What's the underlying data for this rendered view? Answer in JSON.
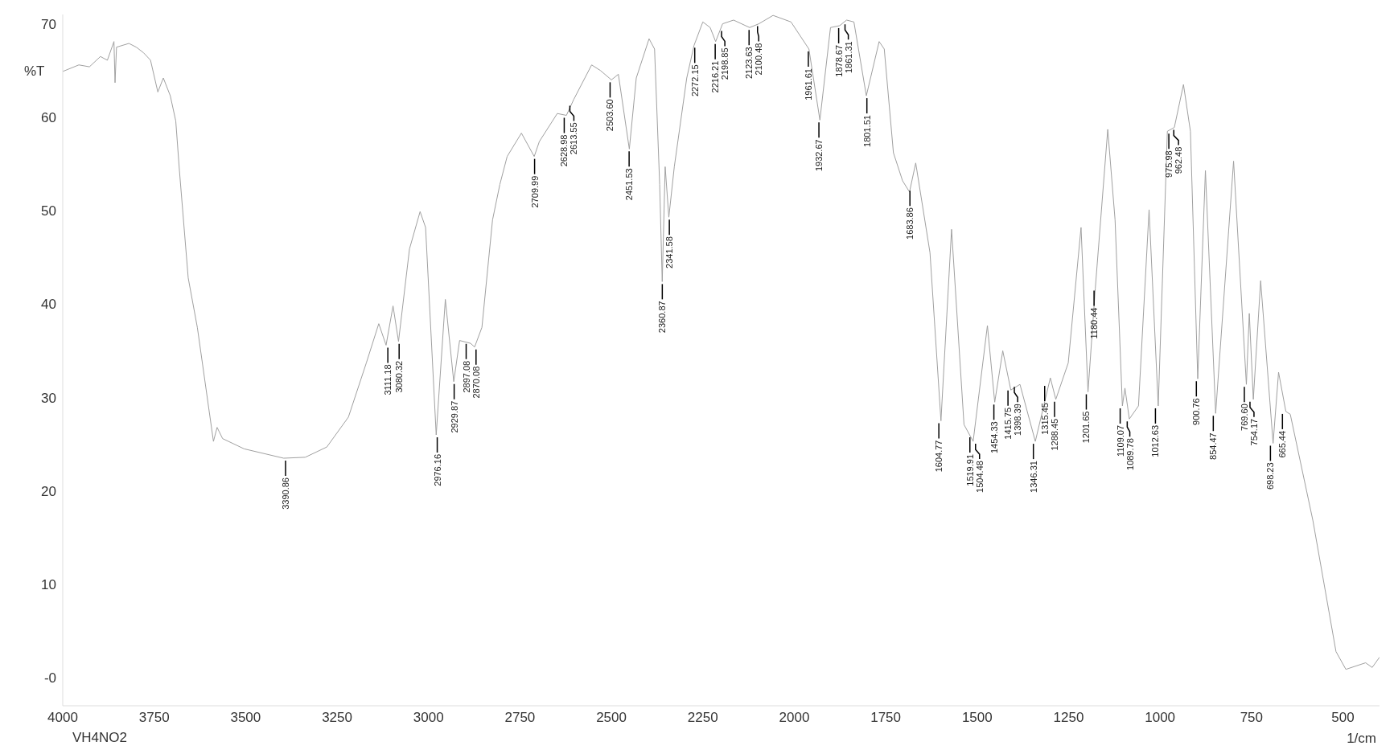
{
  "chart_data": {
    "type": "line",
    "ylabel": "%T",
    "xlabel": "1/cm",
    "xlim": [
      4000,
      400
    ],
    "xticks": [
      4000,
      3750,
      3500,
      3250,
      3000,
      2750,
      2500,
      2250,
      2000,
      1750,
      1500,
      1250,
      1000,
      750,
      500
    ],
    "ylim": [
      -3,
      71
    ],
    "yticks": [
      {
        "value": 0,
        "label": "-0"
      },
      10,
      20,
      30,
      40,
      50,
      60,
      70
    ],
    "series": [
      {
        "color": "#a0a0a0",
        "x": [
          4000,
          3956,
          3927,
          3897,
          3878,
          3860,
          3857,
          3853,
          3819,
          3799,
          3779,
          3760,
          3740,
          3725,
          3706,
          3691,
          3681,
          3657,
          3632,
          3588,
          3578,
          3563,
          3504,
          3396,
          3337,
          3278,
          3219,
          3170,
          3136,
          3116,
          3097,
          3082,
          3052,
          3023,
          3008,
          2979,
          2954,
          2931,
          2915,
          2885,
          2874,
          2854,
          2825,
          2805,
          2785,
          2746,
          2711,
          2697,
          2648,
          2623,
          2603,
          2554,
          2530,
          2500,
          2481,
          2451,
          2432,
          2397,
          2382,
          2368,
          2361,
          2353,
          2343,
          2328,
          2294,
          2274,
          2250,
          2230,
          2215,
          2196,
          2166,
          2122,
          2097,
          2058,
          2009,
          1960,
          1930,
          1901,
          1876,
          1857,
          1837,
          1803,
          1768,
          1754,
          1729,
          1704,
          1685,
          1668,
          1629,
          1599,
          1570,
          1536,
          1511,
          1472,
          1452,
          1430,
          1408,
          1383,
          1341,
          1300,
          1285,
          1251,
          1216,
          1197,
          1177,
          1143,
          1123,
          1103,
          1096,
          1084,
          1059,
          1030,
          1005,
          980,
          961,
          936,
          917,
          897,
          876,
          848,
          799,
          764,
          756,
          745,
          725,
          691,
          676,
          656,
          644,
          582,
          519,
          492,
          438,
          420,
          400
        ],
        "values": [
          64.9,
          65.6,
          65.4,
          66.5,
          66.1,
          68.1,
          63.7,
          67.5,
          67.9,
          67.5,
          66.9,
          66.1,
          62.7,
          64.2,
          62.3,
          59.6,
          54.3,
          42.8,
          37.5,
          25.3,
          26.8,
          25.6,
          24.5,
          23.5,
          23.6,
          24.7,
          27.9,
          33.7,
          37.9,
          35.6,
          39.8,
          36.0,
          45.9,
          49.9,
          48.2,
          26.0,
          40.5,
          31.7,
          36.1,
          35.8,
          35.4,
          37.5,
          49.0,
          52.8,
          55.8,
          58.3,
          55.8,
          57.4,
          60.4,
          60.2,
          61.9,
          65.6,
          65.0,
          64.0,
          64.6,
          56.6,
          64.2,
          68.4,
          67.3,
          52.8,
          42.4,
          54.7,
          49.3,
          54.7,
          64.2,
          67.7,
          70.2,
          69.6,
          68.1,
          70.0,
          70.4,
          69.6,
          70.0,
          70.9,
          70.2,
          67.3,
          59.7,
          69.6,
          69.8,
          70.4,
          70.2,
          62.3,
          68.1,
          67.3,
          56.2,
          53.2,
          52.0,
          55.1,
          45.5,
          27.5,
          48.0,
          27.1,
          25.3,
          37.7,
          29.5,
          35.0,
          30.8,
          31.4,
          25.3,
          32.1,
          29.8,
          33.7,
          48.2,
          30.6,
          41.7,
          58.7,
          49.0,
          29.1,
          31.0,
          27.7,
          29.1,
          50.1,
          29.1,
          58.5,
          58.9,
          63.5,
          58.5,
          32.0,
          54.3,
          28.3,
          55.3,
          31.4,
          39.0,
          29.8,
          42.5,
          25.1,
          32.7,
          28.5,
          28.2,
          16.8,
          2.8,
          0.9,
          1.6,
          1.1,
          2.2
        ]
      }
    ],
    "annotations": [
      "VH4NO2",
      {
        "text": "3390.86",
        "x": 3390.86,
        "y": 23.5
      },
      {
        "text": "3111.18",
        "x": 3111.18,
        "y": 35.6
      },
      {
        "text": "3080.32",
        "x": 3080.32,
        "y": 36.0
      },
      {
        "text": "2976.16",
        "x": 2976.16,
        "y": 26.0
      },
      {
        "text": "2929.87",
        "x": 2929.87,
        "y": 31.7
      },
      {
        "text": "2897.08",
        "x": 2897.08,
        "y": 36.0
      },
      {
        "text": "2870.08",
        "x": 2870.08,
        "y": 35.4
      },
      {
        "text": "2709.99",
        "x": 2709.99,
        "y": 55.8
      },
      {
        "text": "2628.98",
        "x": 2628.98,
        "y": 60.2
      },
      {
        "text": "2613.55",
        "x": 2613.55,
        "y": 61.5
      },
      {
        "text": "2503.60",
        "x": 2503.6,
        "y": 64.0
      },
      {
        "text": "2451.53",
        "x": 2451.53,
        "y": 56.6
      },
      {
        "text": "2360.87",
        "x": 2360.87,
        "y": 42.4
      },
      {
        "text": "2341.58",
        "x": 2341.58,
        "y": 49.3
      },
      {
        "text": "2272.15",
        "x": 2272.15,
        "y": 67.7
      },
      {
        "text": "2216.21",
        "x": 2216.21,
        "y": 68.1
      },
      {
        "text": "2198.85",
        "x": 2198.85,
        "y": 69.5
      },
      {
        "text": "2123.63",
        "x": 2123.63,
        "y": 69.6
      },
      {
        "text": "2100.48",
        "x": 2100.48,
        "y": 70.0
      },
      {
        "text": "1961.61",
        "x": 1961.61,
        "y": 67.3
      },
      {
        "text": "1932.67",
        "x": 1932.67,
        "y": 59.7
      },
      {
        "text": "1878.67",
        "x": 1878.67,
        "y": 69.8
      },
      {
        "text": "1861.31",
        "x": 1861.31,
        "y": 70.2
      },
      {
        "text": "1801.51",
        "x": 1801.51,
        "y": 62.3
      },
      {
        "text": "1683.86",
        "x": 1683.86,
        "y": 52.4
      },
      {
        "text": "1604.77",
        "x": 1604.77,
        "y": 27.5
      },
      {
        "text": "1519.91",
        "x": 1519.91,
        "y": 26.0
      },
      {
        "text": "1504.48",
        "x": 1504.48,
        "y": 25.3
      },
      {
        "text": "1454.33",
        "x": 1454.33,
        "y": 29.5
      },
      {
        "text": "1415.75",
        "x": 1415.75,
        "y": 31.0
      },
      {
        "text": "1398.39",
        "x": 1398.39,
        "y": 31.4
      },
      {
        "text": "1346.31",
        "x": 1346.31,
        "y": 25.3
      },
      {
        "text": "1315.45",
        "x": 1315.45,
        "y": 31.5
      },
      {
        "text": "1288.45",
        "x": 1288.45,
        "y": 29.8
      },
      {
        "text": "1201.65",
        "x": 1201.65,
        "y": 30.6
      },
      {
        "text": "1180.44",
        "x": 1180.44,
        "y": 41.7
      },
      {
        "text": "1109.07",
        "x": 1109.07,
        "y": 29.1
      },
      {
        "text": "1089.78",
        "x": 1089.78,
        "y": 27.7
      },
      {
        "text": "1012.63",
        "x": 1012.63,
        "y": 29.1
      },
      {
        "text": "975.98",
        "x": 975.98,
        "y": 58.5
      },
      {
        "text": "962.48",
        "x": 962.48,
        "y": 58.9
      },
      {
        "text": "900.76",
        "x": 900.76,
        "y": 32.0
      },
      {
        "text": "854.47",
        "x": 854.47,
        "y": 28.3
      },
      {
        "text": "769.60",
        "x": 769.6,
        "y": 31.4
      },
      {
        "text": "754.17",
        "x": 754.17,
        "y": 29.8
      },
      {
        "text": "698.23",
        "x": 698.23,
        "y": 25.1
      },
      {
        "text": "665.44",
        "x": 665.44,
        "y": 28.5
      }
    ]
  }
}
